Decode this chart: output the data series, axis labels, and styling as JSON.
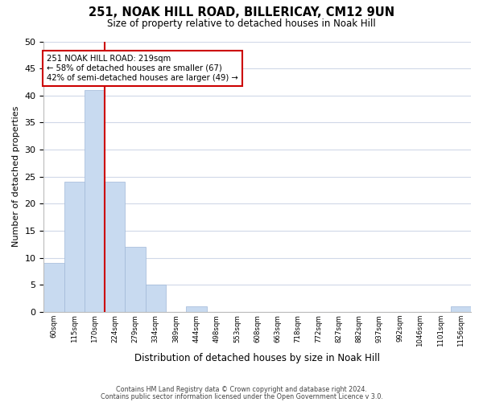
{
  "title": "251, NOAK HILL ROAD, BILLERICAY, CM12 9UN",
  "subtitle": "Size of property relative to detached houses in Noak Hill",
  "xlabel": "Distribution of detached houses by size in Noak Hill",
  "ylabel": "Number of detached properties",
  "bin_labels": [
    "60sqm",
    "115sqm",
    "170sqm",
    "224sqm",
    "279sqm",
    "334sqm",
    "389sqm",
    "444sqm",
    "498sqm",
    "553sqm",
    "608sqm",
    "663sqm",
    "718sqm",
    "772sqm",
    "827sqm",
    "882sqm",
    "937sqm",
    "992sqm",
    "1046sqm",
    "1101sqm",
    "1156sqm"
  ],
  "bar_values": [
    9,
    24,
    41,
    24,
    12,
    5,
    0,
    1,
    0,
    0,
    0,
    0,
    0,
    0,
    0,
    0,
    0,
    0,
    0,
    0,
    1
  ],
  "bar_color": "#c8daf0",
  "bar_edge_color": "#a0b8d8",
  "vline_x": 3,
  "vline_color": "#cc0000",
  "ylim": [
    0,
    50
  ],
  "annotation_text": "251 NOAK HILL ROAD: 219sqm\n← 58% of detached houses are smaller (67)\n42% of semi-detached houses are larger (49) →",
  "annotation_box_color": "#ffffff",
  "annotation_box_edge": "#cc0000",
  "footer1": "Contains HM Land Registry data © Crown copyright and database right 2024.",
  "footer2": "Contains public sector information licensed under the Open Government Licence v 3.0.",
  "background_color": "#ffffff",
  "grid_color": "#d0d8e8",
  "yticks": [
    0,
    5,
    10,
    15,
    20,
    25,
    30,
    35,
    40,
    45,
    50
  ]
}
